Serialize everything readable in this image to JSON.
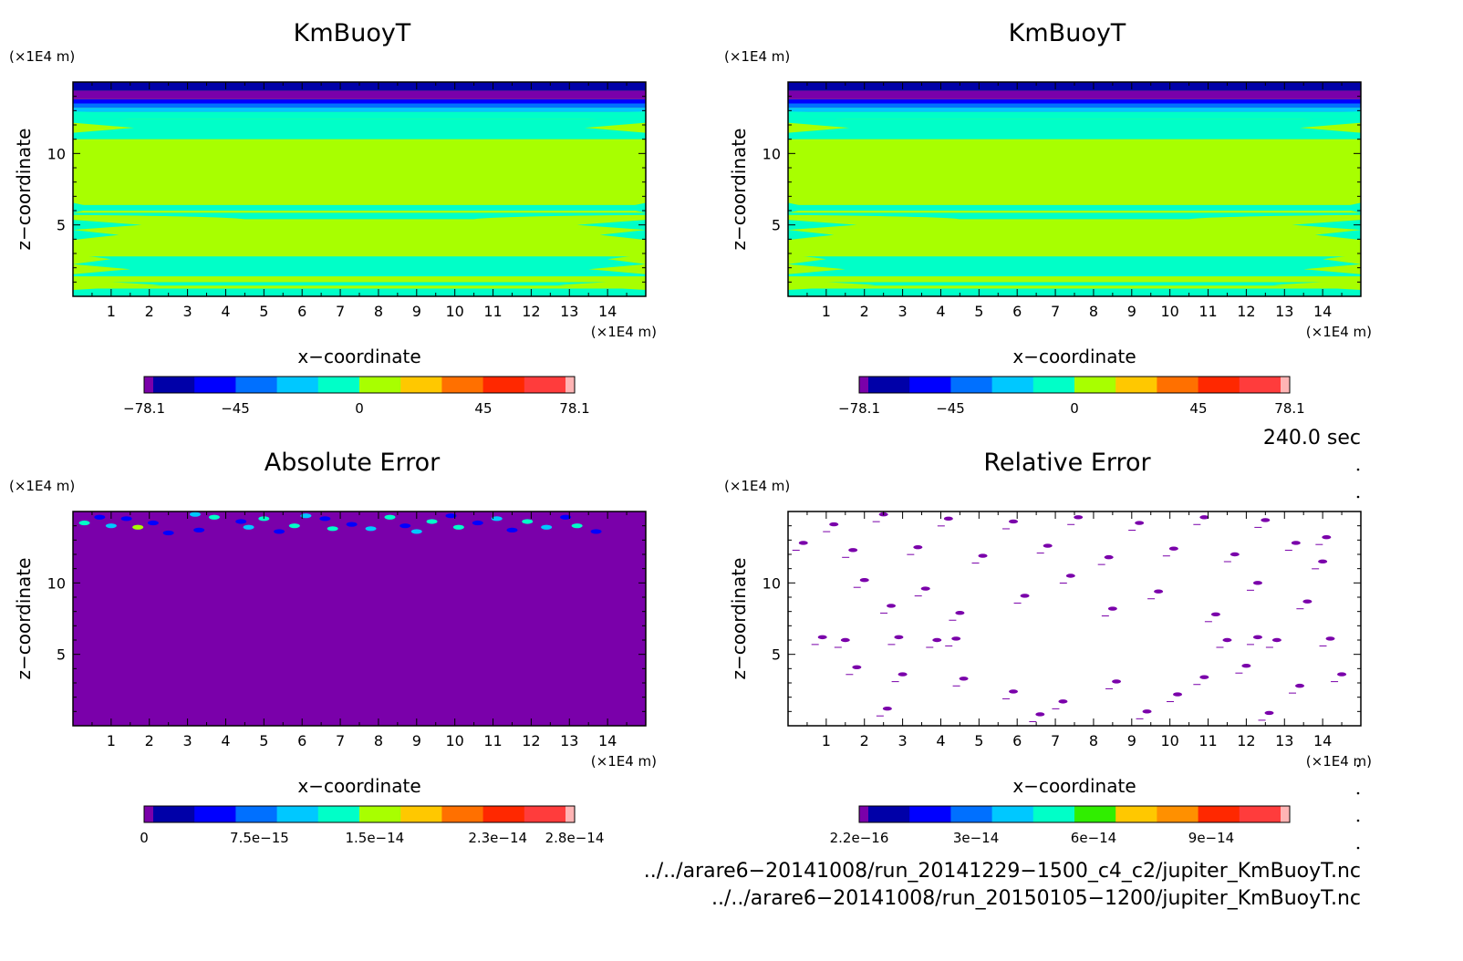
{
  "chart_data": [
    {
      "type": "heatmap",
      "title": "KmBuoyT",
      "xlabel": "x−coordinate",
      "ylabel": "z−coordinate",
      "x_unit": "(×1E4 m)",
      "y_unit": "(×1E4 m)",
      "xlim": [
        0,
        15
      ],
      "ylim": [
        0,
        15
      ],
      "xticks": [
        "1",
        "2",
        "3",
        "4",
        "5",
        "6",
        "7",
        "8",
        "9",
        "10",
        "11",
        "12",
        "13",
        "14"
      ],
      "yticks": [
        "5",
        "10"
      ],
      "colorbar": {
        "ticks": [
          "−78.1",
          "−45",
          "0",
          "45",
          "78.1"
        ],
        "tick_values": [
          -78.1,
          -45,
          0,
          45,
          78.1
        ],
        "range": [
          -78.1,
          78.1
        ],
        "colors": [
          "#7a00aa",
          "#0000a8",
          "#0000ff",
          "#0070ff",
          "#00c8ff",
          "#00ffc8",
          "#a8ff00",
          "#ffc800",
          "#ff7000",
          "#ff2800",
          "#ff3c3c",
          "#ffb4b4"
        ]
      },
      "layers_z": [
        {
          "z": [
            0.0,
            0.55
          ],
          "color": "#00ffc8"
        },
        {
          "z": [
            0.55,
            0.75
          ],
          "color": "#a8ff00"
        },
        {
          "z": [
            0.75,
            1.0
          ],
          "color": "#00ffc8"
        },
        {
          "z": [
            1.0,
            1.4
          ],
          "color": "#a8ff00"
        },
        {
          "z": [
            1.4,
            2.8
          ],
          "color": "#00ffc8"
        },
        {
          "z": [
            2.8,
            3.2
          ],
          "color": "#a8ff00"
        },
        {
          "z": [
            3.2,
            6.0
          ],
          "color": "#a8ff00"
        },
        {
          "z": [
            6.0,
            6.4
          ],
          "color": "#00ffc8"
        },
        {
          "z": [
            6.4,
            11.0
          ],
          "color": "#a8ff00"
        },
        {
          "z": [
            11.0,
            12.0
          ],
          "color": "#00ffc8"
        },
        {
          "z": [
            12.0,
            12.4
          ],
          "color": "#00ffc8"
        },
        {
          "z": [
            12.4,
            12.9
          ],
          "color": "#00ffc8"
        },
        {
          "z": [
            12.9,
            13.2
          ],
          "color": "#00c8ff"
        },
        {
          "z": [
            13.2,
            13.5
          ],
          "color": "#0070ff"
        },
        {
          "z": [
            13.5,
            13.8
          ],
          "color": "#0000ff"
        },
        {
          "z": [
            13.8,
            14.4
          ],
          "color": "#7a00aa"
        },
        {
          "z": [
            14.4,
            15.0
          ],
          "color": "#0000a8"
        }
      ]
    },
    {
      "type": "heatmap",
      "title": "KmBuoyT",
      "xlabel": "x−coordinate",
      "ylabel": "z−coordinate",
      "x_unit": "(×1E4 m)",
      "y_unit": "(×1E4 m)",
      "xlim": [
        0,
        15
      ],
      "ylim": [
        0,
        15
      ],
      "xticks": [
        "1",
        "2",
        "3",
        "4",
        "5",
        "6",
        "7",
        "8",
        "9",
        "10",
        "11",
        "12",
        "13",
        "14"
      ],
      "yticks": [
        "5",
        "10"
      ],
      "colorbar": {
        "ticks": [
          "−78.1",
          "−45",
          "0",
          "45",
          "78.1"
        ],
        "tick_values": [
          -78.1,
          -45,
          0,
          45,
          78.1
        ],
        "range": [
          -78.1,
          78.1
        ],
        "colors": [
          "#7a00aa",
          "#0000a8",
          "#0000ff",
          "#0070ff",
          "#00c8ff",
          "#00ffc8",
          "#a8ff00",
          "#ffc800",
          "#ff7000",
          "#ff2800",
          "#ff3c3c",
          "#ffb4b4"
        ]
      },
      "layers_z": [
        {
          "z": [
            0.0,
            0.55
          ],
          "color": "#00ffc8"
        },
        {
          "z": [
            0.55,
            0.75
          ],
          "color": "#a8ff00"
        },
        {
          "z": [
            0.75,
            1.0
          ],
          "color": "#00ffc8"
        },
        {
          "z": [
            1.0,
            1.4
          ],
          "color": "#a8ff00"
        },
        {
          "z": [
            1.4,
            2.8
          ],
          "color": "#00ffc8"
        },
        {
          "z": [
            2.8,
            3.2
          ],
          "color": "#a8ff00"
        },
        {
          "z": [
            3.2,
            6.0
          ],
          "color": "#a8ff00"
        },
        {
          "z": [
            6.0,
            6.4
          ],
          "color": "#00ffc8"
        },
        {
          "z": [
            6.4,
            11.0
          ],
          "color": "#a8ff00"
        },
        {
          "z": [
            11.0,
            12.0
          ],
          "color": "#00ffc8"
        },
        {
          "z": [
            12.0,
            12.4
          ],
          "color": "#00ffc8"
        },
        {
          "z": [
            12.4,
            12.9
          ],
          "color": "#00ffc8"
        },
        {
          "z": [
            12.9,
            13.2
          ],
          "color": "#00c8ff"
        },
        {
          "z": [
            13.2,
            13.5
          ],
          "color": "#0070ff"
        },
        {
          "z": [
            13.5,
            13.8
          ],
          "color": "#0000ff"
        },
        {
          "z": [
            13.8,
            14.4
          ],
          "color": "#7a00aa"
        },
        {
          "z": [
            14.4,
            15.0
          ],
          "color": "#0000a8"
        }
      ]
    },
    {
      "type": "heatmap",
      "title": "Absolute Error",
      "xlabel": "x−coordinate",
      "ylabel": "z−coordinate",
      "x_unit": "(×1E4 m)",
      "y_unit": "(×1E4 m)",
      "xlim": [
        0,
        15
      ],
      "ylim": [
        0,
        15
      ],
      "xticks": [
        "1",
        "2",
        "3",
        "4",
        "5",
        "6",
        "7",
        "8",
        "9",
        "10",
        "11",
        "12",
        "13",
        "14"
      ],
      "yticks": [
        "5",
        "10"
      ],
      "background_color": "#7a00aa",
      "colorbar": {
        "ticks": [
          "0",
          "7.5e−15",
          "1.5e−14",
          "2.3e−14",
          "2.8e−14"
        ],
        "tick_values": [
          0,
          7.5e-15,
          1.5e-14,
          2.3e-14,
          2.8e-14
        ],
        "range": [
          0,
          2.8e-14
        ],
        "colors": [
          "#7a00aa",
          "#0000a8",
          "#0000ff",
          "#0070ff",
          "#00c8ff",
          "#00ffc8",
          "#a8ff00",
          "#ffc800",
          "#ff7000",
          "#ff2800",
          "#ff3c3c",
          "#ffb4b4"
        ]
      },
      "spots": [
        {
          "x": 0.3,
          "z": 14.2,
          "c": "#00ffc8"
        },
        {
          "x": 0.7,
          "z": 14.6,
          "c": "#0000ff"
        },
        {
          "x": 1.0,
          "z": 14.0,
          "c": "#00c8ff"
        },
        {
          "x": 1.4,
          "z": 14.5,
          "c": "#0000ff"
        },
        {
          "x": 1.7,
          "z": 13.9,
          "c": "#a8ff00"
        },
        {
          "x": 2.1,
          "z": 14.2,
          "c": "#0000ff"
        },
        {
          "x": 2.5,
          "z": 13.5,
          "c": "#0000ff"
        },
        {
          "x": 3.2,
          "z": 14.8,
          "c": "#00c8ff"
        },
        {
          "x": 3.3,
          "z": 13.7,
          "c": "#0000ff"
        },
        {
          "x": 3.7,
          "z": 14.6,
          "c": "#00ffc8"
        },
        {
          "x": 4.4,
          "z": 14.3,
          "c": "#0000ff"
        },
        {
          "x": 4.6,
          "z": 13.9,
          "c": "#00c8ff"
        },
        {
          "x": 5.0,
          "z": 14.5,
          "c": "#00ffc8"
        },
        {
          "x": 5.4,
          "z": 13.6,
          "c": "#0000ff"
        },
        {
          "x": 5.8,
          "z": 14.0,
          "c": "#00ffc8"
        },
        {
          "x": 6.1,
          "z": 14.7,
          "c": "#00c8ff"
        },
        {
          "x": 6.6,
          "z": 14.5,
          "c": "#0000ff"
        },
        {
          "x": 6.8,
          "z": 13.8,
          "c": "#00ffc8"
        },
        {
          "x": 7.3,
          "z": 14.1,
          "c": "#0000ff"
        },
        {
          "x": 7.8,
          "z": 13.8,
          "c": "#00c8ff"
        },
        {
          "x": 8.3,
          "z": 14.6,
          "c": "#00ffc8"
        },
        {
          "x": 8.7,
          "z": 14.0,
          "c": "#0000ff"
        },
        {
          "x": 9.0,
          "z": 13.6,
          "c": "#00c8ff"
        },
        {
          "x": 9.4,
          "z": 14.3,
          "c": "#00ffc8"
        },
        {
          "x": 9.9,
          "z": 14.7,
          "c": "#0000ff"
        },
        {
          "x": 10.1,
          "z": 13.9,
          "c": "#00ffc8"
        },
        {
          "x": 10.6,
          "z": 14.2,
          "c": "#0000ff"
        },
        {
          "x": 11.1,
          "z": 14.5,
          "c": "#00c8ff"
        },
        {
          "x": 11.5,
          "z": 13.7,
          "c": "#0000ff"
        },
        {
          "x": 11.9,
          "z": 14.3,
          "c": "#00ffc8"
        },
        {
          "x": 12.4,
          "z": 13.9,
          "c": "#00c8ff"
        },
        {
          "x": 12.9,
          "z": 14.6,
          "c": "#0000ff"
        },
        {
          "x": 13.2,
          "z": 14.0,
          "c": "#00ffc8"
        },
        {
          "x": 13.7,
          "z": 13.6,
          "c": "#0000ff"
        }
      ]
    },
    {
      "type": "heatmap",
      "title": "Relative Error",
      "xlabel": "x−coordinate",
      "ylabel": "z−coordinate",
      "x_unit": "(×1E4 m)",
      "y_unit": "(×1E4 m)",
      "xlim": [
        0,
        15
      ],
      "ylim": [
        0,
        15
      ],
      "xticks": [
        "1",
        "2",
        "3",
        "4",
        "5",
        "6",
        "7",
        "8",
        "9",
        "10",
        "11",
        "12",
        "13",
        "14"
      ],
      "yticks": [
        "5",
        "10"
      ],
      "background_color": "#ffffff",
      "colorbar": {
        "ticks": [
          "2.2e−16",
          "3e−14",
          "6e−14",
          "9e−14"
        ],
        "tick_values": [
          2.2e-16,
          3e-14,
          6e-14,
          9e-14
        ],
        "range": [
          2.2e-16,
          1.1e-13
        ],
        "colors": [
          "#7a00aa",
          "#0000a8",
          "#0000ff",
          "#0070ff",
          "#00c8ff",
          "#00ffc8",
          "#30ee00",
          "#ffc800",
          "#ff9000",
          "#ff2800",
          "#ff3c3c",
          "#ffb4b4"
        ]
      },
      "spots": [
        {
          "x": 0.4,
          "z": 12.8
        },
        {
          "x": 1.2,
          "z": 14.1
        },
        {
          "x": 1.7,
          "z": 12.3
        },
        {
          "x": 2.5,
          "z": 14.8
        },
        {
          "x": 3.4,
          "z": 12.5
        },
        {
          "x": 4.2,
          "z": 14.5
        },
        {
          "x": 5.1,
          "z": 11.9
        },
        {
          "x": 5.9,
          "z": 14.3
        },
        {
          "x": 6.8,
          "z": 12.6
        },
        {
          "x": 7.6,
          "z": 14.6
        },
        {
          "x": 8.4,
          "z": 11.8
        },
        {
          "x": 9.2,
          "z": 14.2
        },
        {
          "x": 10.1,
          "z": 12.4
        },
        {
          "x": 10.9,
          "z": 14.6
        },
        {
          "x": 11.7,
          "z": 12.0
        },
        {
          "x": 12.5,
          "z": 14.4
        },
        {
          "x": 13.3,
          "z": 12.8
        },
        {
          "x": 14.1,
          "z": 13.2
        },
        {
          "x": 2.0,
          "z": 10.2
        },
        {
          "x": 2.7,
          "z": 8.4
        },
        {
          "x": 3.6,
          "z": 9.6
        },
        {
          "x": 4.5,
          "z": 7.9
        },
        {
          "x": 6.2,
          "z": 9.1
        },
        {
          "x": 7.4,
          "z": 10.5
        },
        {
          "x": 8.5,
          "z": 8.2
        },
        {
          "x": 9.7,
          "z": 9.4
        },
        {
          "x": 11.2,
          "z": 7.8
        },
        {
          "x": 12.3,
          "z": 10.0
        },
        {
          "x": 13.6,
          "z": 8.7
        },
        {
          "x": 0.9,
          "z": 6.2
        },
        {
          "x": 1.5,
          "z": 6.0
        },
        {
          "x": 2.9,
          "z": 6.2
        },
        {
          "x": 3.9,
          "z": 6.0
        },
        {
          "x": 4.4,
          "z": 6.1
        },
        {
          "x": 11.5,
          "z": 6.0
        },
        {
          "x": 12.3,
          "z": 6.2
        },
        {
          "x": 12.8,
          "z": 6.0
        },
        {
          "x": 14.2,
          "z": 6.1
        },
        {
          "x": 1.8,
          "z": 4.1
        },
        {
          "x": 3.0,
          "z": 3.6
        },
        {
          "x": 4.6,
          "z": 3.3
        },
        {
          "x": 5.9,
          "z": 2.4
        },
        {
          "x": 7.2,
          "z": 1.7
        },
        {
          "x": 8.6,
          "z": 3.1
        },
        {
          "x": 10.2,
          "z": 2.2
        },
        {
          "x": 10.9,
          "z": 3.4
        },
        {
          "x": 12.0,
          "z": 4.2
        },
        {
          "x": 13.4,
          "z": 2.8
        },
        {
          "x": 14.5,
          "z": 3.6
        },
        {
          "x": 2.6,
          "z": 1.2
        },
        {
          "x": 6.6,
          "z": 0.8
        },
        {
          "x": 9.4,
          "z": 1.0
        },
        {
          "x": 12.6,
          "z": 0.9
        },
        {
          "x": 14.0,
          "z": 11.5
        }
      ]
    }
  ],
  "annotations": {
    "time": "240.0 sec",
    "file1": "../../arare6−20141008/run_20141229−1500_c4_c2/jupiter_KmBuoyT.nc",
    "file2": "../../arare6−20141008/run_20150105−1200/jupiter_KmBuoyT.nc"
  }
}
